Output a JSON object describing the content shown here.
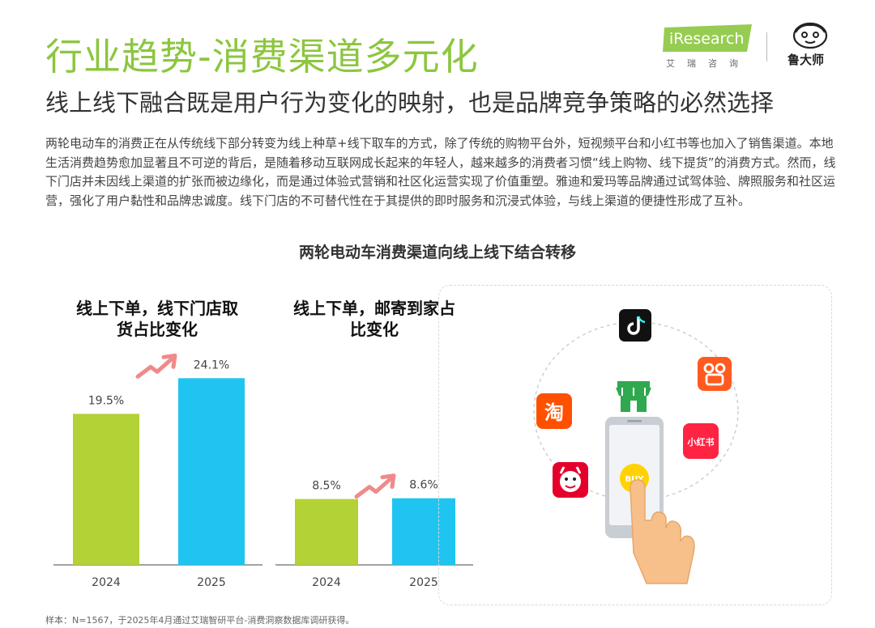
{
  "header": {
    "title": "行业趋势-消费渠道多元化",
    "subtitle": "线上线下融合既是用户行为变化的映射，也是品牌竞争策略的必然选择",
    "logo_research": "iResearch",
    "logo_research_cn": "艾瑞咨询",
    "logo_partner": "鲁大师"
  },
  "body_text": "两轮电动车的消费正在从传统线下部分转变为线上种草+线下取车的方式，除了传统的购物平台外，短视频平台和小红书等也加入了销售渠道。本地生活消费趋势愈加显著且不可逆的背后，是随着移动互联网成长起来的年轻人，越来越多的消费者习惯“线上购物、线下提货”的消费方式。然而，线下门店并未因线上渠道的扩张而被边缘化，而是通过体验式营销和社区化运营实现了价值重塑。雅迪和爱玛等品牌通过试驾体验、牌照服务和社区运营，强化了用户黏性和品牌忠诚度。线下门店的不可替代性在于其提供的即时服务和沉浸式体验，与线上渠道的便捷性形成了互补。",
  "section_title": "两轮电动车消费渠道向线上线下结合转移",
  "colors": {
    "green": "#b2d235",
    "blue": "#1fc5f0",
    "accent_green": "#8cc63f",
    "arrow": "#f08a8a"
  },
  "chart_data": [
    {
      "type": "bar",
      "title": "线上下单，线下门店取货占比变化",
      "title_lines": [
        "线上下单，线下门店取",
        "货占比变化"
      ],
      "categories": [
        "2024",
        "2025"
      ],
      "values": [
        19.5,
        24.1
      ],
      "labels": [
        "19.5%",
        "24.1%"
      ],
      "unit": "%"
    },
    {
      "type": "bar",
      "title": "线上下单，邮寄到家占比变化",
      "title_lines": [
        "线上下单，邮寄到家占",
        "比变化"
      ],
      "categories": [
        "2024",
        "2025"
      ],
      "values": [
        8.5,
        8.6
      ],
      "labels": [
        "8.5%",
        "8.6%"
      ],
      "unit": "%"
    }
  ],
  "illustration": {
    "apps": [
      "tiktok-app-icon",
      "kuaishou-app-icon",
      "xiaohongshu-app-icon",
      "taobao-app-icon",
      "jd-app-icon",
      "store-icon",
      "phone-icon",
      "hand-icon"
    ],
    "taobao_label": "淘",
    "xiaohongshu_label": "小红书",
    "phone_badge": "BUY"
  },
  "footnote": "样本：N=1567，于2025年4月通过艾瑞智研平台-消费洞察数据库调研获得。"
}
